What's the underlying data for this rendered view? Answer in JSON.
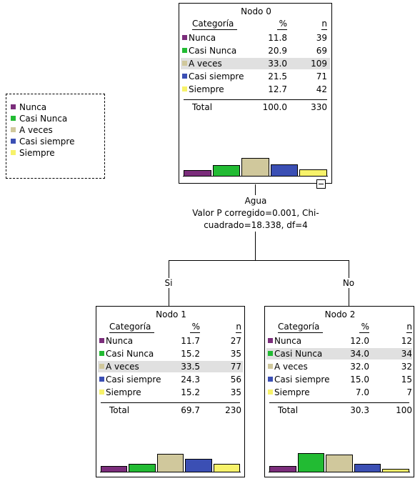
{
  "colors": {
    "nunca": "#7b2d7b",
    "casi_nunca": "#22bb33",
    "a_veces": "#d0c89c",
    "casi_siempre": "#3b4fb4",
    "siempre": "#f7f26a"
  },
  "legend": {
    "items": [
      "Nunca",
      "Casi Nunca",
      "A veces",
      "Casi siempre",
      "Siempre"
    ]
  },
  "headers": {
    "category": "Categoría",
    "percent": "%",
    "n": "n",
    "total": "Total"
  },
  "split": {
    "variable": "Agua",
    "line1": "Valor P corregido=0.001, Chi-",
    "line2": "cuadrado=18.338, df=4",
    "branch_left": "Si",
    "branch_right": "No"
  },
  "nodes": {
    "node0": {
      "title": "Nodo 0",
      "rows": [
        {
          "cat": "Nunca",
          "pct": "11.8",
          "n": "39"
        },
        {
          "cat": "Casi Nunca",
          "pct": "20.9",
          "n": "69"
        },
        {
          "cat": "A veces",
          "pct": "33.0",
          "n": "109"
        },
        {
          "cat": "Casi siempre",
          "pct": "21.5",
          "n": "71"
        },
        {
          "cat": "Siempre",
          "pct": "12.7",
          "n": "42"
        }
      ],
      "total_pct": "100.0",
      "total_n": "330",
      "highlight": 2
    },
    "node1": {
      "title": "Nodo 1",
      "rows": [
        {
          "cat": "Nunca",
          "pct": "11.7",
          "n": "27"
        },
        {
          "cat": "Casi Nunca",
          "pct": "15.2",
          "n": "35"
        },
        {
          "cat": "A veces",
          "pct": "33.5",
          "n": "77"
        },
        {
          "cat": "Casi siempre",
          "pct": "24.3",
          "n": "56"
        },
        {
          "cat": "Siempre",
          "pct": "15.2",
          "n": "35"
        }
      ],
      "total_pct": "69.7",
      "total_n": "230",
      "highlight": 2
    },
    "node2": {
      "title": "Nodo 2",
      "rows": [
        {
          "cat": "Nunca",
          "pct": "12.0",
          "n": "12"
        },
        {
          "cat": "Casi Nunca",
          "pct": "34.0",
          "n": "34"
        },
        {
          "cat": "A veces",
          "pct": "32.0",
          "n": "32"
        },
        {
          "cat": "Casi siempre",
          "pct": "15.0",
          "n": "15"
        },
        {
          "cat": "Siempre",
          "pct": "7.0",
          "n": "7"
        }
      ],
      "total_pct": "30.3",
      "total_n": "100",
      "highlight": 1
    }
  }
}
